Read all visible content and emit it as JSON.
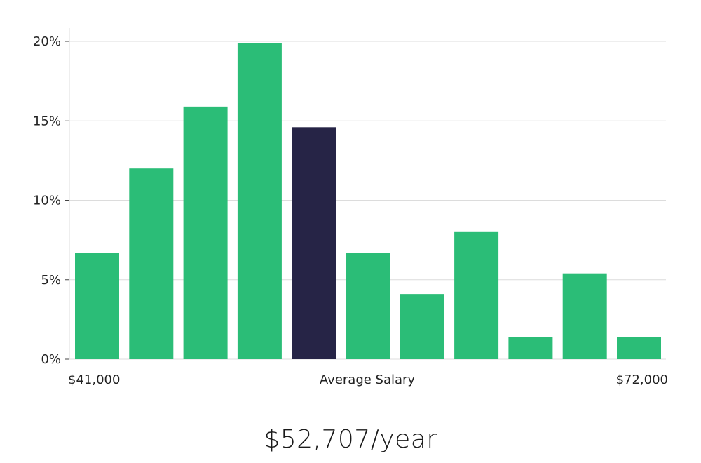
{
  "chart_data": {
    "type": "bar",
    "title": "",
    "xlabel": "Average Salary",
    "ylabel": "",
    "x_min_label": "$41,000",
    "x_max_label": "$72,000",
    "ylim": [
      0,
      20
    ],
    "yticks": [
      0,
      5,
      10,
      15,
      20
    ],
    "ytick_labels": [
      "0%",
      "5%",
      "10%",
      "15%",
      "20%"
    ],
    "values": [
      6.7,
      12.0,
      15.9,
      19.9,
      14.6,
      6.7,
      4.1,
      8.0,
      1.4,
      5.4,
      1.4
    ],
    "highlight_index": 4,
    "colors": {
      "bar": "#2bbd77",
      "highlight": "#262446",
      "grid": "#dcdcdc"
    }
  },
  "summary": {
    "salary_text": "$52,707/year"
  }
}
